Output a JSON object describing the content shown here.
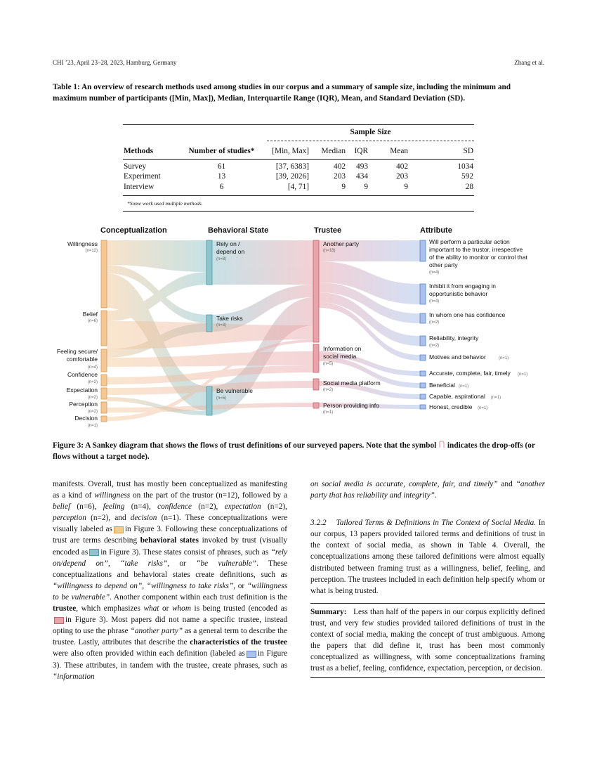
{
  "header": {
    "left": "CHI ’23, April 23–28, 2023, Hamburg, Germany",
    "right": "Zhang et al."
  },
  "table1": {
    "caption": "Table 1: An overview of research methods used among studies in our corpus and a summary of sample size, including the minimum and maximum number of participants ([Min, Max]), Median, Interquartile Range (IQR), Mean, and Standard Deviation (SD).",
    "group_header": "Sample Size",
    "columns": [
      "Methods",
      "Number of studies*",
      "[Min, Max]",
      "Median",
      "IQR",
      "Mean",
      "SD"
    ],
    "rows": [
      [
        "Survey",
        "61",
        "[37, 6383]",
        "402",
        "493",
        "402",
        "1034"
      ],
      [
        "Experiment",
        "13",
        "[39, 2026]",
        "203",
        "434",
        "203",
        "592"
      ],
      [
        "Interview",
        "6",
        "[4, 71]",
        "9",
        "9",
        "9",
        "28"
      ]
    ],
    "footnote": "*Some work used multiple methods."
  },
  "sankey": {
    "columns": [
      "Conceptualization",
      "Behavioral State",
      "Trustee",
      "Attribute"
    ],
    "conceptualization": [
      {
        "label": "Willingness",
        "n": "(n=12)"
      },
      {
        "label": "Belief",
        "n": "(n=6)"
      },
      {
        "label": "Feeling secure/ comfortable",
        "n": "(n=4)"
      },
      {
        "label": "Confidence",
        "n": "(n=2)"
      },
      {
        "label": "Expectation",
        "n": "(n=2)"
      },
      {
        "label": "Perception",
        "n": "(n=2)"
      },
      {
        "label": "Decision",
        "n": "(n=1)"
      }
    ],
    "behavioral_state": [
      {
        "label": "Rely on / depend on",
        "n": "(n=8)"
      },
      {
        "label": "Take risks",
        "n": "(n=3)"
      },
      {
        "label": "Be vulnerable",
        "n": "(n=5)"
      }
    ],
    "trustee": [
      {
        "label": "Another party",
        "n": "(n=18)"
      },
      {
        "label": "Information on social media",
        "n": "(n=5)"
      },
      {
        "label": "Social media platform",
        "n": "(n=2)"
      },
      {
        "label": "Person providing info",
        "n": "(n=1)"
      }
    ],
    "attribute": [
      {
        "label": "Will perform a particular action important to the trustor, irrespective of the ability to monitor or control that other party",
        "n": "(n=4)"
      },
      {
        "label": "Inhibit it from engaging in opportunistic behavior",
        "n": "(n=4)"
      },
      {
        "label": "In whom one has confidence",
        "n": "(n=2)"
      },
      {
        "label": "Reliability, integrity",
        "n": "(n=2)"
      },
      {
        "label": "Motives and behavior",
        "n": "(n=1)"
      },
      {
        "label": "Accurate, complete, fair, timely",
        "n": "(n=1)"
      },
      {
        "label": "Beneficial",
        "n": "(n=1)"
      },
      {
        "label": "Capable, aspirational",
        "n": "(n=1)"
      },
      {
        "label": "Honest, credible",
        "n": "(n=1)"
      }
    ],
    "colors": {
      "conceptualization": "#f4c896",
      "behavioral": "#8fc4cc",
      "trustee": "#e8a3ab",
      "attribute": "#a9c2ec"
    }
  },
  "figure3": {
    "caption_before": "Figure 3: A Sankey diagram that shows the flows of trust definitions of our surveyed papers. Note that the symbol",
    "caption_after": "indicates the drop-offs (or flows without a target node)."
  },
  "left_col": {
    "p1_a": "manifests. Overall, trust has mostly been conceptualized as manifesting as a kind of ",
    "p1_willingness": "willingness",
    "p1_b": " on the part of the trustor (n=12), followed by a ",
    "p1_belief": "belief",
    "p1_c": " (n=6), ",
    "p1_feeling": "feeling",
    "p1_d": " (n=4), ",
    "p1_confidence": "confidence",
    "p1_e": " (n=2), ",
    "p1_expectation": "expectation",
    "p1_f": " (n=2), ",
    "p1_perception": "perception",
    "p1_g": " (n=2), and ",
    "p1_decision": "decision",
    "p1_h": " (n=1). These conceptualizations were visually labeled as",
    "p1_i": "in Figure 3. Following these conceptualizations of trust are terms describing ",
    "p1_bs": "behavioral states",
    "p1_j": " invoked by trust (visually encoded as",
    "p1_k": "in Figure 3). These states consist of phrases, such as ",
    "p1_q1": "“rely on/depend on”",
    "p1_l": ", ",
    "p1_q2": "“take risks”",
    "p1_m": ", or ",
    "p1_q3": "“be vulnerable”",
    "p1_n": ". These conceptualizations and behavioral states create definitions, such as ",
    "p1_q4": "“willingness to depend on”",
    "p1_o": ", ",
    "p1_q5": "“willingness to take risks”",
    "p1_p": ", or ",
    "p1_q6": "“willingness to be vulnerable”",
    "p1_r": ". Another component within each trust definition is the ",
    "p1_trustee": "trustee",
    "p1_s": ", which emphasizes ",
    "p1_what": "what",
    "p1_t": " or ",
    "p1_whom": "whom",
    "p1_u": " is being trusted (encoded as",
    "p1_v": "in Figure 3). Most papers did not name a specific trustee, instead opting to use the phrase ",
    "p1_q7": "“another party”",
    "p1_w": " as a general term to describe the trustee. Lastly, attributes that describe the ",
    "p1_char": "characteristics of the trustee",
    "p1_x": " were also often provided within each definition (labeled as",
    "p1_y": "in Figure 3). These attributes, in tandem with the trustee, create phrases, such as ",
    "p1_q8": "“information"
  },
  "right_col": {
    "cont": "on social media is accurate, complete, fair, and timely”",
    "cont_and": " and ",
    "cont_q": "“another party that has reliability and integrity”",
    "cont_end": ".",
    "section_num": "3.2.2",
    "section_title": "Tailored Terms & Definitions in The Context of Social Media.",
    "section_text": "In our corpus, 13 papers provided tailored terms and definitions of trust in the context of social media, as shown in Table 4. Overall, the conceptualizations among these tailored definitions were almost equally distributed between framing trust as a willingness, belief, feeling, and perception. The trustees included in each definition help specify whom or what is being trusted.",
    "summary_label": "Summary:",
    "summary_text": "Less than half of the papers in our corpus explicitly defined trust, and very few studies provided tailored definitions of trust in the context of social media, making the concept of trust ambiguous. Among the papers that did define it, trust has been most commonly conceptualized as willingness, with some conceptualizations framing trust as a belief, feeling, confidence, expectation, perception, or decision."
  }
}
